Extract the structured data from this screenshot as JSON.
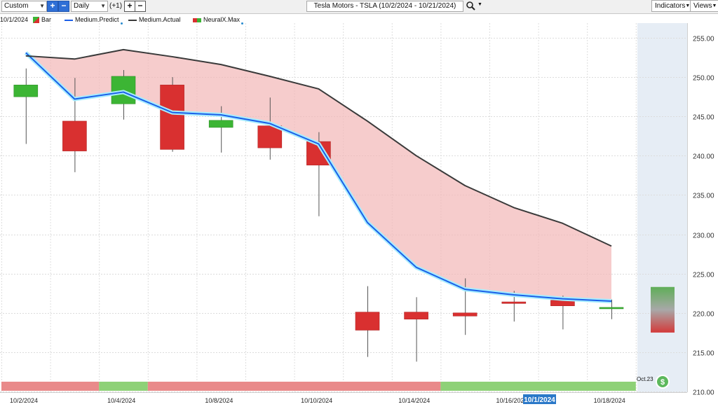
{
  "toolbar": {
    "preset": "Custom",
    "period": "Daily",
    "step": "(+1)",
    "title": "Tesla Motors - TSLA (10/2/2024 - 10/21/2024)",
    "indicators": "Indicators",
    "views": "Views",
    "search_icon": "magnifier-icon"
  },
  "legend": {
    "date": "10/1/2024",
    "bar": "Bar",
    "predict": "Medium.Predict",
    "actual": "Medium.Actual",
    "neuralx": "NeuralX.Max"
  },
  "colors": {
    "predict": "#1b5fe8",
    "actual": "#3a3a3a",
    "band": "#f2b8b8",
    "up": "#3cb534",
    "down": "#d93030",
    "future_bg": "#e6edf5",
    "strip_red": "#e98a8a",
    "strip_green": "#8ed177",
    "crosshair_label": "#2a78c8"
  },
  "crosshair_label": "10/1/2024",
  "marker": {
    "label": "Oct.23",
    "icon": "dollar-circle-icon"
  },
  "chart_data": {
    "type": "candlestick",
    "y_ticks": [
      "210.00",
      "215.00",
      "220.00",
      "225.00",
      "230.00",
      "235.00",
      "240.00",
      "245.00",
      "250.00",
      "255.00"
    ],
    "ylim": [
      210,
      256.5
    ],
    "x_labels": [
      {
        "i": 0,
        "label": "10/2/2024"
      },
      {
        "i": 4,
        "label": "10/4/2024"
      },
      {
        "i": 8,
        "label": "10/8/2024"
      },
      {
        "i": 12,
        "label": "10/10/2024"
      },
      {
        "i": 16,
        "label": "10/14/2024"
      },
      {
        "i": 20,
        "label": "10/16/2024"
      },
      {
        "i": 24,
        "label": "10/18/2024"
      }
    ],
    "candles": [
      {
        "i": 1,
        "open": 247.5,
        "high": 251.1,
        "low": 241.5,
        "close": 249.0
      },
      {
        "i": 3,
        "open": 244.4,
        "high": 249.9,
        "low": 237.9,
        "close": 240.6
      },
      {
        "i": 5,
        "open": 246.6,
        "high": 250.9,
        "low": 244.6,
        "close": 250.1
      },
      {
        "i": 7,
        "open": 249.0,
        "high": 250.0,
        "low": 240.5,
        "close": 240.8
      },
      {
        "i": 9,
        "open": 243.6,
        "high": 246.3,
        "low": 240.4,
        "close": 244.5
      },
      {
        "i": 11,
        "open": 243.8,
        "high": 247.4,
        "low": 239.5,
        "close": 241.0
      },
      {
        "i": 13,
        "open": 241.8,
        "high": 243.0,
        "low": 232.3,
        "close": 238.8
      },
      {
        "i": 15,
        "open": 220.1,
        "high": 223.4,
        "low": 214.4,
        "close": 217.8
      },
      {
        "i": 17,
        "open": 220.1,
        "high": 222.0,
        "low": 213.8,
        "close": 219.2
      },
      {
        "i": 19,
        "open": 220.0,
        "high": 224.4,
        "low": 217.2,
        "close": 219.6
      },
      {
        "i": 21,
        "open": 221.4,
        "high": 222.8,
        "low": 218.9,
        "close": 221.2
      },
      {
        "i": 23,
        "open": 221.6,
        "high": 222.2,
        "low": 217.9,
        "close": 220.9
      },
      {
        "i": 25,
        "open": 220.7,
        "high": 221.7,
        "low": 219.2,
        "close": 220.7
      }
    ],
    "future_candle": {
      "i": 27,
      "top": 223.3,
      "bottom": 217.5
    },
    "series": [
      {
        "name": "Medium.Predict",
        "points": [
          [
            1,
            253.1
          ],
          [
            3,
            247.2
          ],
          [
            5,
            248.1
          ],
          [
            7,
            245.5
          ],
          [
            9,
            245.2
          ],
          [
            11,
            244.1
          ],
          [
            13,
            241.5
          ],
          [
            15,
            231.5
          ],
          [
            17,
            225.8
          ],
          [
            19,
            223.0
          ],
          [
            21,
            222.3
          ],
          [
            23,
            221.8
          ],
          [
            25,
            221.5
          ]
        ]
      },
      {
        "name": "Medium.Actual",
        "points": [
          [
            1,
            252.7
          ],
          [
            3,
            252.3
          ],
          [
            5,
            253.5
          ],
          [
            7,
            252.6
          ],
          [
            9,
            251.6
          ],
          [
            11,
            250.1
          ],
          [
            13,
            248.5
          ],
          [
            15,
            244.4
          ],
          [
            17,
            240.0
          ],
          [
            19,
            236.2
          ],
          [
            21,
            233.4
          ],
          [
            23,
            231.4
          ],
          [
            25,
            228.5
          ]
        ]
      }
    ],
    "strip": [
      {
        "from": 0,
        "to": 4,
        "color": "red"
      },
      {
        "from": 4,
        "to": 6,
        "color": "green"
      },
      {
        "from": 6,
        "to": 18,
        "color": "red"
      },
      {
        "from": 18,
        "to": 26,
        "color": "green"
      }
    ]
  }
}
